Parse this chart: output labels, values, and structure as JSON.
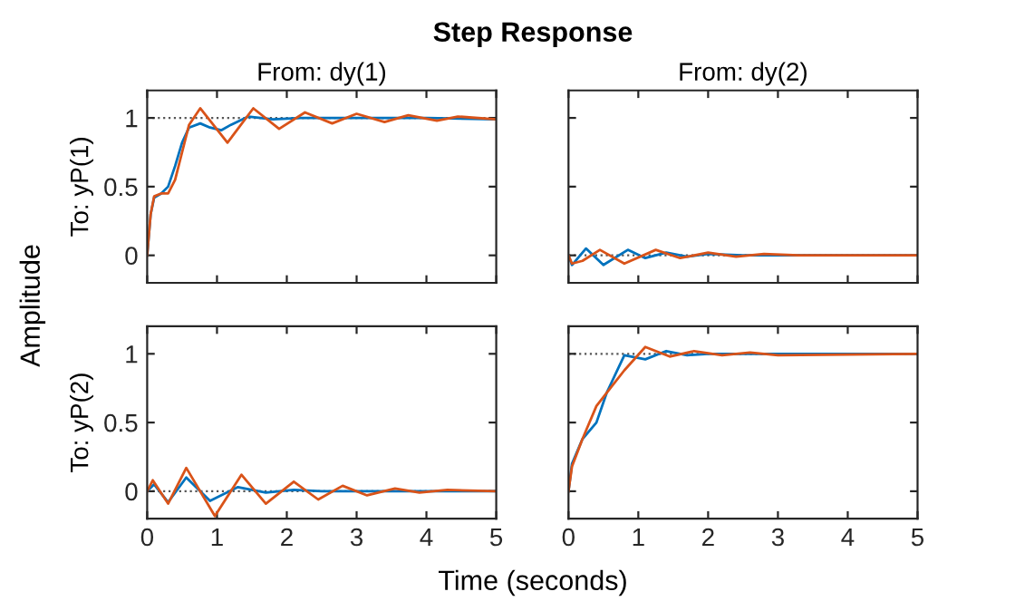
{
  "chart_data": [
    {
      "type": "line",
      "title": "From: dy(1)",
      "ylabel": "To: yP(1)",
      "annotations": [
        "Step Response",
        "Amplitude",
        "Time (seconds)"
      ],
      "xlim": [
        0,
        5
      ],
      "ylim": [
        -0.2,
        1.2
      ],
      "xticks": [
        0,
        1,
        2,
        3,
        4,
        5
      ],
      "yticks": [
        0,
        0.5,
        1
      ],
      "tick_labels": "y",
      "grid": false,
      "ref_lines": [
        {
          "axis": "y",
          "value": 1,
          "color": "#555555",
          "line_style": "dotted"
        }
      ],
      "series": [
        {
          "color": "#0072bd",
          "x": [
            0,
            0.05,
            0.1,
            0.2,
            0.3,
            0.4,
            0.5,
            0.6,
            0.76,
            0.9,
            1.06,
            1.2,
            1.45,
            1.8,
            2.2,
            3,
            4,
            5
          ],
          "values": [
            0,
            0.3,
            0.42,
            0.45,
            0.5,
            0.65,
            0.82,
            0.93,
            0.96,
            0.93,
            0.91,
            0.95,
            1.01,
            0.99,
            1.0,
            1.0,
            1.0,
            0.99
          ]
        },
        {
          "color": "#d95319",
          "x": [
            0,
            0.05,
            0.1,
            0.2,
            0.3,
            0.4,
            0.5,
            0.6,
            0.76,
            1.15,
            1.52,
            1.89,
            2.26,
            2.65,
            3.0,
            3.4,
            3.74,
            4.15,
            4.45,
            5
          ],
          "values": [
            0,
            0.3,
            0.43,
            0.45,
            0.45,
            0.55,
            0.75,
            0.95,
            1.07,
            0.82,
            1.07,
            0.92,
            1.04,
            0.96,
            1.03,
            0.97,
            1.02,
            0.98,
            1.01,
            0.99
          ]
        }
      ]
    },
    {
      "type": "line",
      "title": "From: dy(2)",
      "xlim": [
        0,
        5
      ],
      "ylim": [
        -0.2,
        1.2
      ],
      "xticks": [
        0,
        1,
        2,
        3,
        4,
        5
      ],
      "yticks": [
        0,
        0.5,
        1
      ],
      "tick_labels": false,
      "grid": false,
      "ref_lines": [
        {
          "axis": "y",
          "value": 0,
          "color": "#555555",
          "line_style": "dotted"
        }
      ],
      "series": [
        {
          "color": "#0072bd",
          "x": [
            0,
            0.05,
            0.25,
            0.5,
            0.85,
            1.1,
            1.4,
            1.7,
            2.0,
            2.5,
            5
          ],
          "values": [
            0,
            -0.07,
            0.05,
            -0.07,
            0.04,
            -0.02,
            0.02,
            -0.01,
            0.01,
            0,
            0
          ]
        },
        {
          "color": "#d95319",
          "x": [
            0,
            0.05,
            0.2,
            0.45,
            0.8,
            1.25,
            1.6,
            2.0,
            2.4,
            2.8,
            3.3,
            5
          ],
          "values": [
            0,
            -0.06,
            -0.04,
            0.04,
            -0.06,
            0.04,
            -0.02,
            0.02,
            -0.01,
            0.01,
            0,
            0
          ]
        }
      ]
    },
    {
      "type": "line",
      "ylabel": "To: yP(2)",
      "xlim": [
        0,
        5
      ],
      "ylim": [
        -0.2,
        1.2
      ],
      "xticks": [
        0,
        1,
        2,
        3,
        4,
        5
      ],
      "yticks": [
        0,
        0.5,
        1
      ],
      "grid": false,
      "ref_lines": [
        {
          "axis": "y",
          "value": 0,
          "color": "#555555",
          "line_style": "dotted"
        }
      ],
      "series": [
        {
          "color": "#0072bd",
          "x": [
            0,
            0.1,
            0.3,
            0.56,
            0.9,
            1.3,
            1.7,
            2.1,
            2.5,
            5
          ],
          "values": [
            0,
            0.05,
            -0.08,
            0.1,
            -0.07,
            0.03,
            -0.01,
            0.01,
            0,
            0
          ]
        },
        {
          "color": "#d95319",
          "x": [
            0,
            0.08,
            0.3,
            0.56,
            0.97,
            1.35,
            1.7,
            2.1,
            2.45,
            2.8,
            3.15,
            3.55,
            3.9,
            4.3,
            5
          ],
          "values": [
            0,
            0.08,
            -0.09,
            0.17,
            -0.18,
            0.12,
            -0.09,
            0.07,
            -0.06,
            0.04,
            -0.03,
            0.02,
            -0.01,
            0.01,
            0
          ]
        }
      ]
    },
    {
      "type": "line",
      "xlim": [
        0,
        5
      ],
      "ylim": [
        -0.2,
        1.2
      ],
      "xticks": [
        0,
        1,
        2,
        3,
        4,
        5
      ],
      "yticks": [
        0,
        0.5,
        1
      ],
      "tick_labels": "x",
      "grid": false,
      "ref_lines": [
        {
          "axis": "y",
          "value": 1,
          "color": "#555555",
          "line_style": "dotted"
        }
      ],
      "series": [
        {
          "color": "#0072bd",
          "x": [
            0,
            0.05,
            0.2,
            0.4,
            0.55,
            0.8,
            1.1,
            1.4,
            1.7,
            2.0,
            5
          ],
          "values": [
            0,
            0.2,
            0.38,
            0.5,
            0.72,
            0.99,
            0.96,
            1.02,
            0.99,
            1.0,
            1.0
          ]
        },
        {
          "color": "#d95319",
          "x": [
            0,
            0.05,
            0.2,
            0.4,
            0.6,
            0.8,
            1.1,
            1.45,
            1.8,
            2.2,
            2.6,
            3,
            5
          ],
          "values": [
            0,
            0.18,
            0.38,
            0.62,
            0.75,
            0.88,
            1.05,
            0.98,
            1.02,
            0.99,
            1.01,
            0.99,
            1.0
          ]
        }
      ]
    }
  ]
}
